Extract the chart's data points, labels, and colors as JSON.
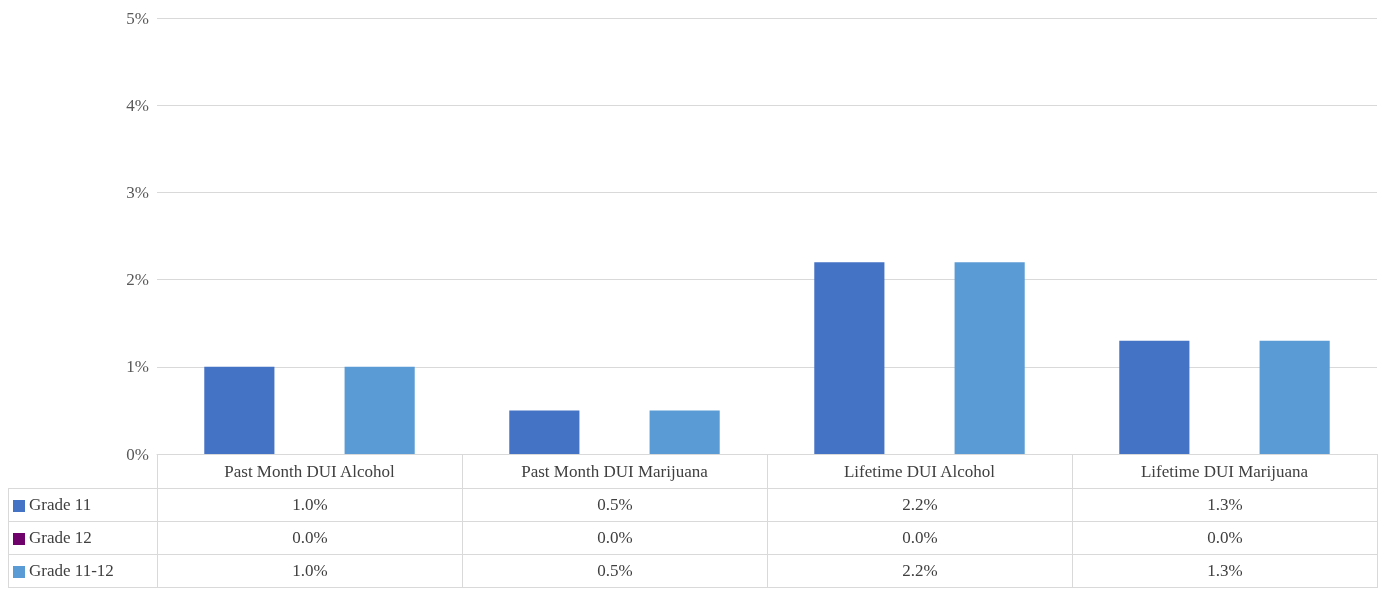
{
  "chart_data": {
    "type": "bar",
    "categories": [
      "Past Month DUI Alcohol",
      "Past Month DUI Marijuana",
      "Lifetime DUI Alcohol",
      "Lifetime DUI Marijuana"
    ],
    "series": [
      {
        "name": "Grade 11",
        "color": "#4472c4",
        "values": [
          1.0,
          0.5,
          2.2,
          1.3
        ],
        "value_labels": [
          "1.0%",
          "0.5%",
          "2.2%",
          "1.3%"
        ]
      },
      {
        "name": "Grade 12",
        "color": "#70036b",
        "values": [
          0.0,
          0.0,
          0.0,
          0.0
        ],
        "value_labels": [
          "0.0%",
          "0.0%",
          "0.0%",
          "0.0%"
        ]
      },
      {
        "name": "Grade 11-12",
        "color": "#5b9bd5",
        "values": [
          1.0,
          0.5,
          2.2,
          1.3
        ],
        "value_labels": [
          "1.0%",
          "0.5%",
          "2.2%",
          "1.3%"
        ]
      }
    ],
    "ylim": [
      0,
      5
    ],
    "yticks": [
      {
        "value": 0,
        "label": "0%"
      },
      {
        "value": 1,
        "label": "1%"
      },
      {
        "value": 2,
        "label": "2%"
      },
      {
        "value": 3,
        "label": "3%"
      },
      {
        "value": 4,
        "label": "4%"
      },
      {
        "value": 5,
        "label": "5%"
      }
    ],
    "grid": "y",
    "legend": "bottom"
  }
}
